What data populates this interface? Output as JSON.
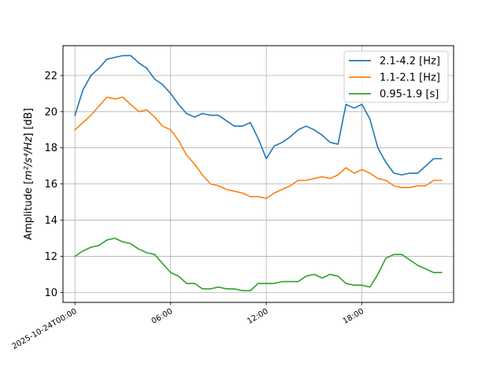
{
  "chart_data": {
    "type": "line",
    "title": "",
    "xlabel": "",
    "ylabel_main": "Amplitude [",
    "ylabel_math": "m²/s⁴/Hz",
    "ylabel_unit": "] [dB]",
    "xlim_hours": [
      -0.75,
      23.75
    ],
    "ylim": [
      9.45,
      23.65
    ],
    "grid": true,
    "legend_position": "top-right",
    "x_ticks": [
      {
        "hour": 0,
        "label": "2025-10-24T00:00"
      },
      {
        "hour": 6,
        "label": "06:00"
      },
      {
        "hour": 12,
        "label": "12:00"
      },
      {
        "hour": 18,
        "label": "18:00"
      }
    ],
    "y_ticks": [
      {
        "value": 10,
        "label": "10"
      },
      {
        "value": 12,
        "label": "12"
      },
      {
        "value": 14,
        "label": "14"
      },
      {
        "value": 16,
        "label": "16"
      },
      {
        "value": 18,
        "label": "18"
      },
      {
        "value": 20,
        "label": "20"
      },
      {
        "value": 22,
        "label": "22"
      }
    ],
    "x_hours": [
      0,
      0.5,
      1,
      1.5,
      2,
      2.5,
      3,
      3.5,
      4,
      4.5,
      5,
      5.5,
      6,
      6.5,
      7,
      7.5,
      8,
      8.5,
      9,
      9.5,
      10,
      10.5,
      11,
      11.5,
      12,
      12.5,
      13,
      13.5,
      14,
      14.5,
      15,
      15.5,
      16,
      16.5,
      17,
      17.5,
      18,
      18.5,
      19,
      19.5,
      20,
      20.5,
      21,
      21.5,
      22,
      22.5,
      23
    ],
    "series": [
      {
        "name": "2.1-4.2 [Hz]",
        "color": "#1f77b4",
        "values": [
          19.8,
          21.2,
          22.0,
          22.4,
          22.9,
          23.0,
          23.1,
          23.1,
          22.7,
          22.4,
          21.8,
          21.5,
          21.0,
          20.4,
          19.9,
          19.7,
          19.9,
          19.8,
          19.8,
          19.5,
          19.2,
          19.2,
          19.4,
          18.5,
          17.4,
          18.1,
          18.3,
          18.6,
          19.0,
          19.2,
          19.0,
          18.7,
          18.3,
          18.2,
          20.4,
          20.2,
          20.4,
          19.6,
          18.0,
          17.2,
          16.6,
          16.5,
          16.6,
          16.6,
          17.0,
          17.4,
          17.4
        ]
      },
      {
        "name": "1.1-2.1 [Hz]",
        "color": "#ff7f0e",
        "values": [
          19.0,
          19.4,
          19.8,
          20.3,
          20.8,
          20.7,
          20.8,
          20.4,
          20.0,
          20.1,
          19.7,
          19.2,
          19.0,
          18.4,
          17.6,
          17.1,
          16.5,
          16.0,
          15.9,
          15.7,
          15.6,
          15.5,
          15.3,
          15.3,
          15.2,
          15.5,
          15.7,
          15.9,
          16.2,
          16.2,
          16.3,
          16.4,
          16.3,
          16.5,
          16.9,
          16.6,
          16.8,
          16.6,
          16.3,
          16.2,
          15.9,
          15.8,
          15.8,
          15.9,
          15.9,
          16.2,
          16.2
        ]
      },
      {
        "name": "0.95-1.9 [s]",
        "color": "#2ca02c",
        "values": [
          12.0,
          12.3,
          12.5,
          12.6,
          12.9,
          13.0,
          12.8,
          12.7,
          12.4,
          12.2,
          12.1,
          11.6,
          11.1,
          10.9,
          10.5,
          10.5,
          10.2,
          10.2,
          10.3,
          10.2,
          10.2,
          10.1,
          10.1,
          10.5,
          10.5,
          10.5,
          10.6,
          10.6,
          10.6,
          10.9,
          11.0,
          10.8,
          11.0,
          10.9,
          10.5,
          10.4,
          10.4,
          10.3,
          11.0,
          11.9,
          12.1,
          12.1,
          11.8,
          11.5,
          11.3,
          11.1,
          11.1
        ]
      }
    ]
  }
}
